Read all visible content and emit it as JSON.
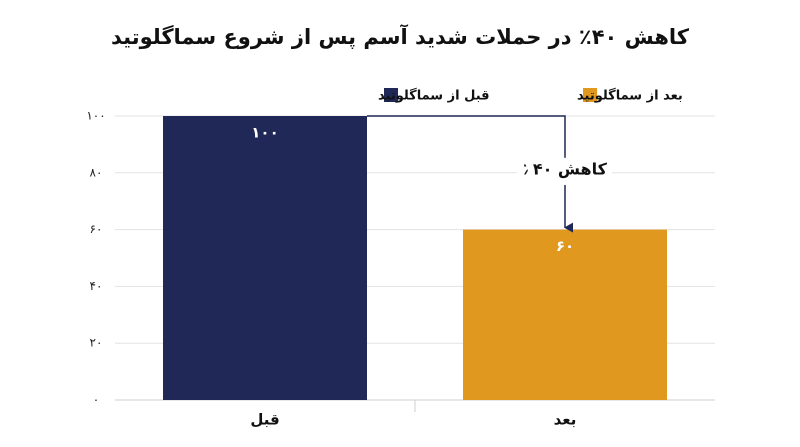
{
  "chart_data": {
    "type": "bar",
    "title": "کاهش ۴۰٪ در حملات شدید آسم پس از شروع سماگلوتید",
    "categories": [
      "قبل",
      "بعد"
    ],
    "series": [
      {
        "name": "قبل از سماگلوتید",
        "color": "#1f2857",
        "values": [
          100,
          null
        ],
        "value_labels": [
          "۱۰۰",
          null
        ]
      },
      {
        "name": "بعد از سماگلوتید",
        "color": "#e0981f",
        "values": [
          null,
          60
        ],
        "value_labels": [
          null,
          "۶۰"
        ]
      }
    ],
    "ylim": [
      0,
      100
    ],
    "yticks": [
      {
        "value": 0,
        "label": "۰"
      },
      {
        "value": 20,
        "label": "۲۰"
      },
      {
        "value": 40,
        "label": "۴۰"
      },
      {
        "value": 60,
        "label": "۶۰"
      },
      {
        "value": 80,
        "label": "۸۰"
      },
      {
        "value": 100,
        "label": "۱۰۰"
      }
    ],
    "grid": true,
    "annotation": "کاهش ۴۰٪"
  }
}
